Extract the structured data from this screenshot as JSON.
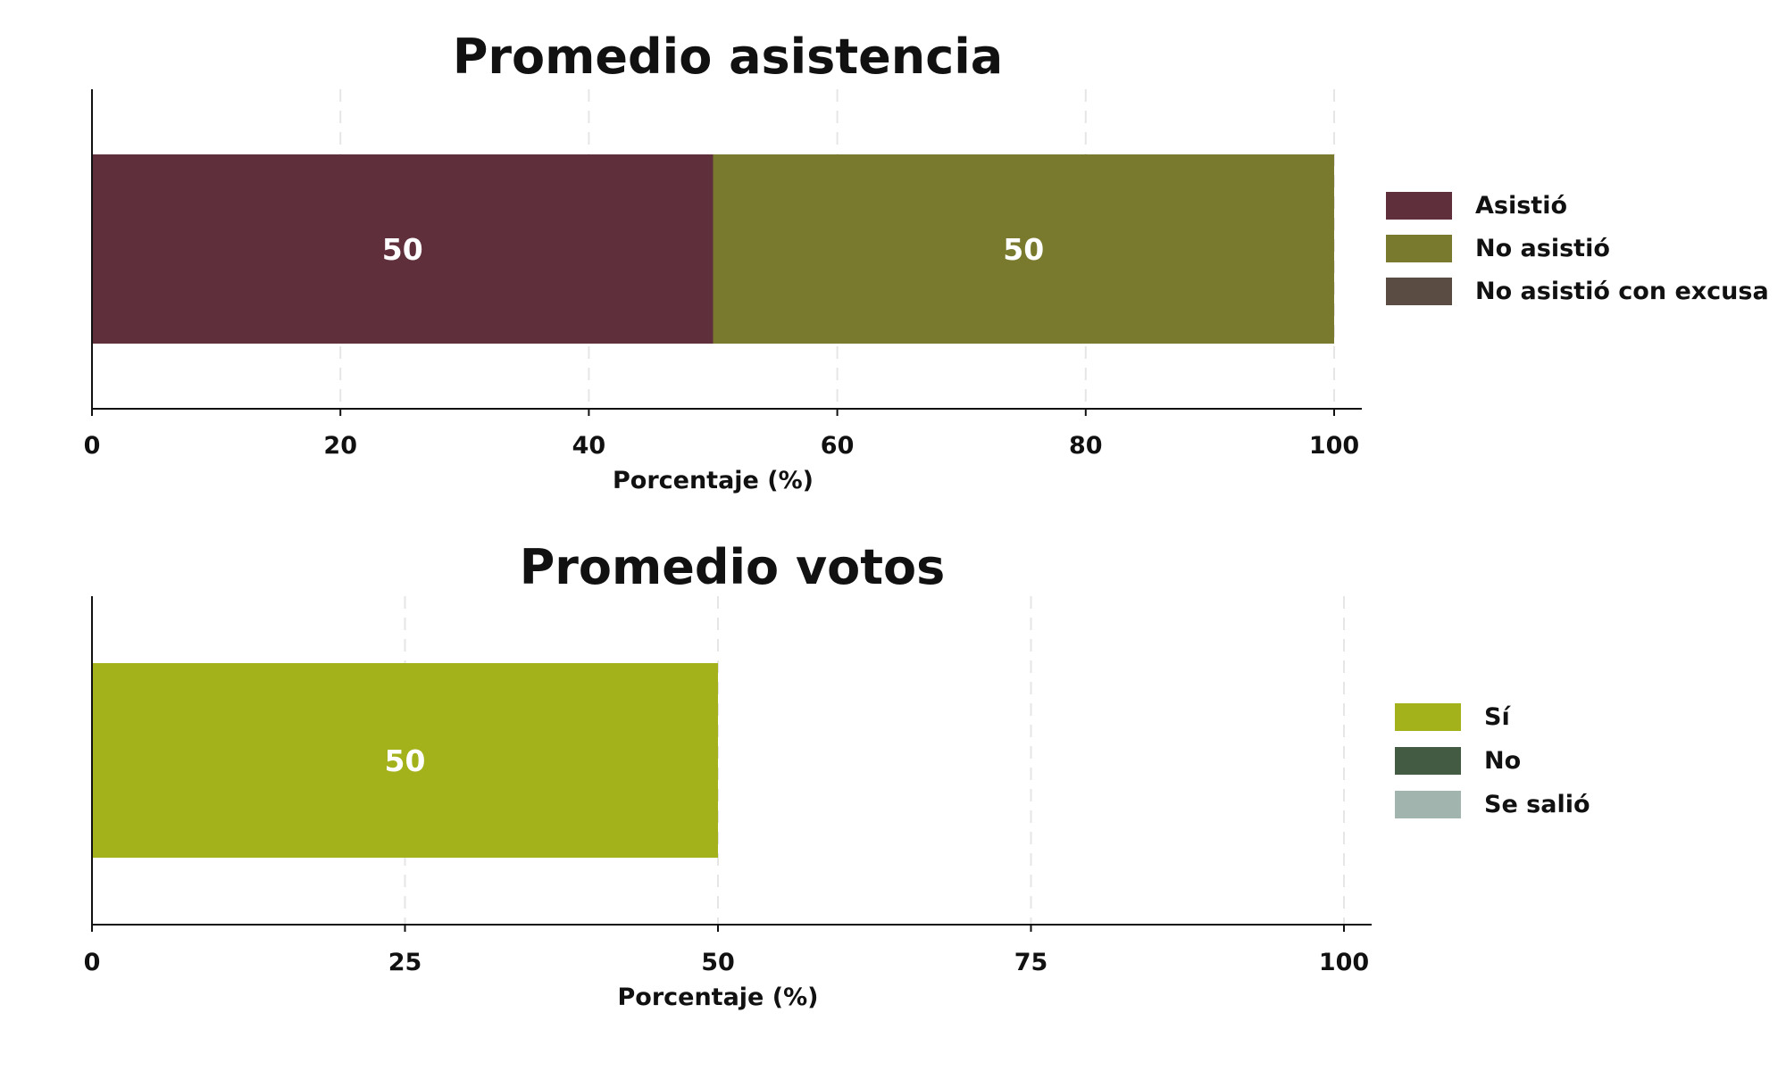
{
  "chart_data": [
    {
      "type": "bar",
      "orientation": "horizontal",
      "stacked": true,
      "title": "Promedio asistencia",
      "xlabel": "Porcentaje (%)",
      "ylabel": "",
      "xlim": [
        0,
        100
      ],
      "xticks": [
        0,
        20,
        40,
        60,
        80,
        100
      ],
      "grid": true,
      "legend_position": "right",
      "series": [
        {
          "name": "Asistió",
          "value": 50,
          "color": "#5f2f3c",
          "label": "50"
        },
        {
          "name": "No asistió",
          "value": 50,
          "color": "#7a7a2f",
          "label": "50"
        },
        {
          "name": "No asistió con excusa",
          "value": 0,
          "color": "#5b4c43",
          "label": ""
        }
      ]
    },
    {
      "type": "bar",
      "orientation": "horizontal",
      "stacked": true,
      "title": "Promedio votos",
      "xlabel": "Porcentaje (%)",
      "ylabel": "",
      "xlim": [
        0,
        100
      ],
      "xticks": [
        0,
        25,
        50,
        75,
        100
      ],
      "grid": true,
      "legend_position": "right",
      "series": [
        {
          "name": "Sí",
          "value": 50,
          "color": "#a3b11a",
          "label": "50"
        },
        {
          "name": "No",
          "value": 0,
          "color": "#435a43",
          "label": ""
        },
        {
          "name": "Se salió",
          "value": 0,
          "color": "#a1b4ad",
          "label": ""
        }
      ]
    }
  ]
}
